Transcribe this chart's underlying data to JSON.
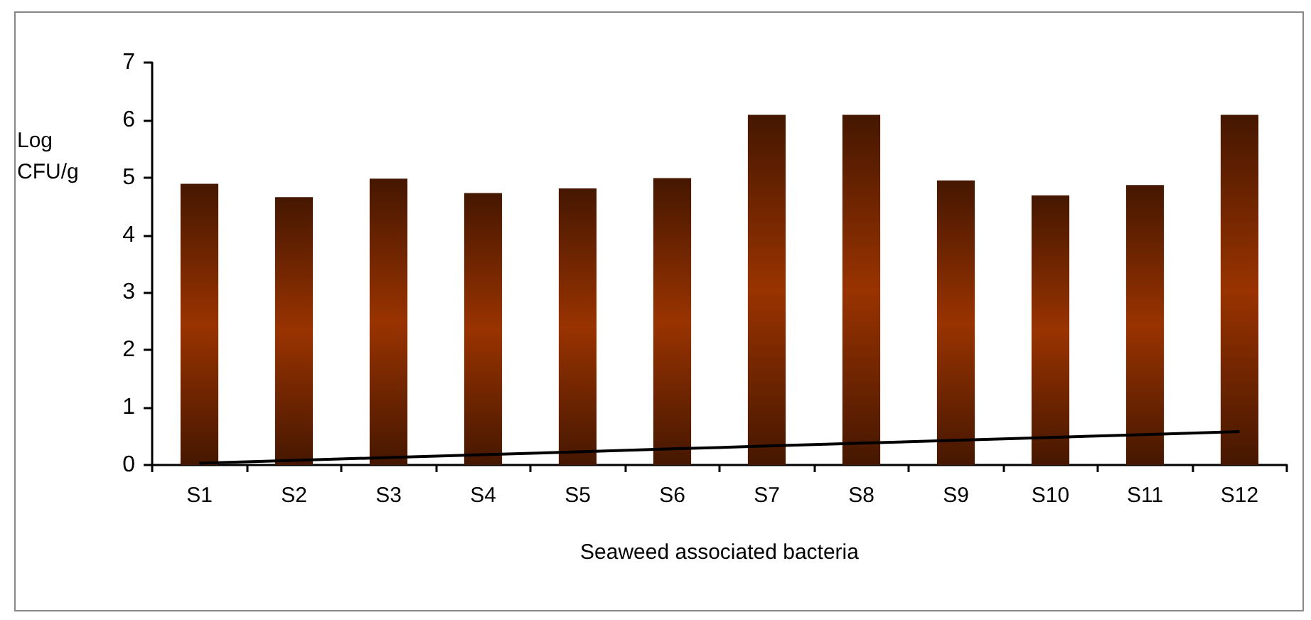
{
  "chart_data": {
    "type": "bar",
    "xlabel": "Seaweed associated bacteria",
    "ylabel": "Log CFU/g",
    "categories": [
      "S1",
      "S2",
      "S3",
      "S4",
      "S5",
      "S6",
      "S7",
      "S8",
      "S9",
      "S10",
      "S11",
      "S12"
    ],
    "series": [
      {
        "color": "#993300",
        "values": [
          4.89,
          4.66,
          4.98,
          4.73,
          4.81,
          4.99,
          6.09,
          6.09,
          4.95,
          4.69,
          4.87,
          6.09
        ]
      },
      {
        "type": "line",
        "color": "#000000",
        "values": [
          0.03,
          0.08,
          0.13,
          0.18,
          0.23,
          0.28,
          0.33,
          0.38,
          0.43,
          0.48,
          0.53,
          0.58
        ]
      }
    ],
    "ylim": [
      0,
      7
    ],
    "yticks": [
      0,
      1,
      2,
      3,
      4,
      5,
      6,
      7
    ],
    "grid": false,
    "marker": "none"
  }
}
